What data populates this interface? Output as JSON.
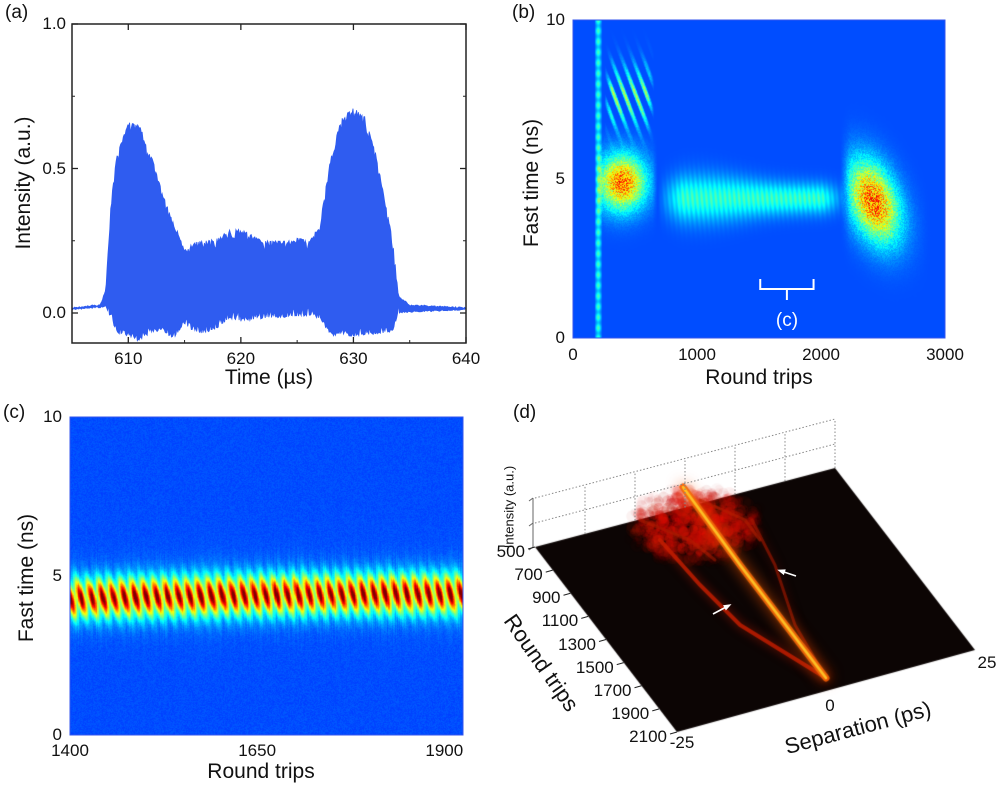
{
  "chart_data": [
    {
      "panel": "(a)",
      "type": "area",
      "xlabel": "Time (µs)",
      "ylabel": "Intensity (a.u.)",
      "xlim": [
        605,
        640
      ],
      "ylim": [
        -0.1,
        1.0
      ],
      "xticks": [
        "610",
        "620",
        "630",
        "640"
      ],
      "yticks": [
        "0.0",
        "0.5",
        "1.0"
      ],
      "color": "#2f5cf0",
      "upper_envelope": {
        "x": [
          605,
          607.5,
          608,
          608.5,
          609,
          610,
          611,
          612,
          613,
          614,
          615,
          616,
          617,
          618,
          619,
          620,
          621,
          622,
          624,
          625,
          626,
          627,
          628,
          629,
          630,
          631,
          632,
          633,
          633.5,
          634,
          635,
          640
        ],
        "y": [
          0.02,
          0.03,
          0.08,
          0.4,
          0.55,
          0.66,
          0.65,
          0.55,
          0.42,
          0.32,
          0.22,
          0.25,
          0.25,
          0.26,
          0.29,
          0.29,
          0.27,
          0.25,
          0.25,
          0.26,
          0.25,
          0.3,
          0.55,
          0.68,
          0.71,
          0.68,
          0.55,
          0.35,
          0.25,
          0.06,
          0.03,
          0.02
        ]
      },
      "lower_envelope": {
        "x": [
          605,
          608,
          609,
          610,
          611,
          612,
          613,
          614,
          615,
          616,
          617,
          618,
          619,
          620,
          622,
          626,
          627,
          628,
          630,
          633,
          633.5,
          634,
          640
        ],
        "y": [
          0.01,
          0.02,
          -0.07,
          -0.08,
          -0.1,
          -0.07,
          -0.06,
          -0.09,
          -0.04,
          -0.07,
          -0.07,
          -0.05,
          -0.02,
          -0.03,
          -0.02,
          -0.01,
          -0.02,
          -0.08,
          -0.08,
          -0.07,
          -0.06,
          0.0,
          0.01
        ]
      }
    },
    {
      "panel": "(b)",
      "type": "heatmap",
      "colormap": "jet",
      "xlabel": "Round trips",
      "ylabel": "Fast time (ns)",
      "xlim": [
        0,
        3000
      ],
      "ylim": [
        0,
        10
      ],
      "xticks": [
        "0",
        "1000",
        "2000",
        "3000"
      ],
      "yticks": [
        "0",
        "5",
        "10"
      ],
      "annotation": {
        "text": "(c)",
        "range": [
          1510,
          1940
        ]
      }
    },
    {
      "panel": "(c)",
      "type": "heatmap",
      "colormap": "jet",
      "xlabel": "Round trips",
      "ylabel": "Fast time (ns)",
      "xlim": [
        1400,
        1925
      ],
      "ylim": [
        0,
        10
      ],
      "xticks": [
        "1400",
        "1650",
        "1900"
      ],
      "yticks": [
        "0",
        "5",
        "10"
      ]
    },
    {
      "panel": "(d)",
      "type": "surface",
      "colormap": "hot",
      "xlabel": "Separation (ps)",
      "ylabel": "Round trips",
      "zlabel": "Intensity (a.u.)",
      "xlim": [
        -25,
        25
      ],
      "ylim": [
        500,
        2100
      ],
      "xticks": [
        "-25",
        "0",
        "25"
      ],
      "yticks": [
        "500",
        "700",
        "900",
        "1100",
        "1300",
        "1500",
        "1700",
        "1900",
        "2100"
      ]
    }
  ]
}
